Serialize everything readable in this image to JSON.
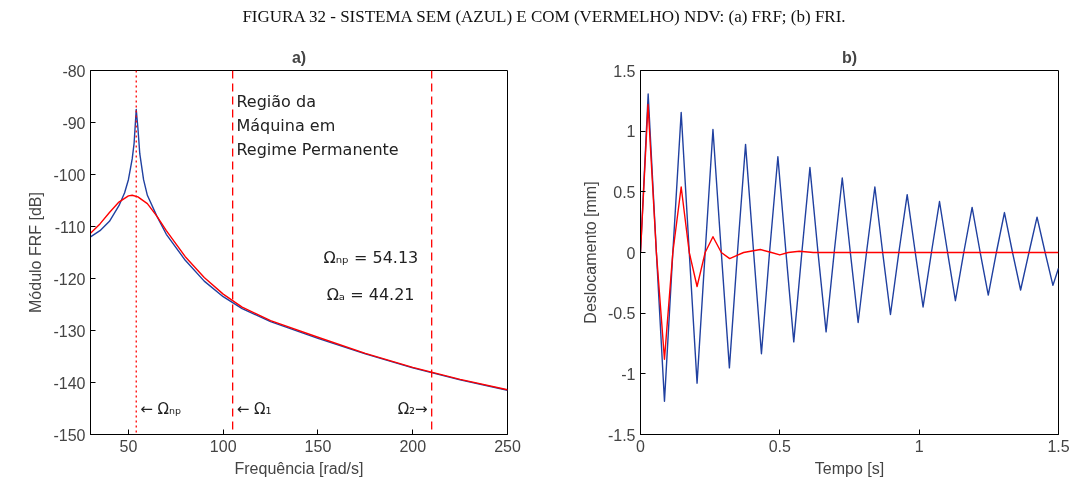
{
  "chart_data": [
    {
      "type": "line",
      "title": "a)",
      "xlabel": "Frequência [rad/s]",
      "ylabel": "Módulo FRF [dB]",
      "xlim": [
        30,
        250
      ],
      "ylim": [
        -150,
        -80
      ],
      "xticks": [
        50,
        100,
        150,
        200,
        250
      ],
      "yticks": [
        -150,
        -140,
        -130,
        -120,
        -110,
        -100,
        -90,
        -80
      ],
      "series": [
        {
          "color": "#2040a0",
          "x": [
            30,
            35,
            40,
            45,
            48,
            50,
            52,
            53,
            54.13,
            55,
            56,
            58,
            60,
            65,
            70,
            80,
            90,
            100,
            110,
            125,
            150,
            175,
            200,
            225,
            250
          ],
          "values": [
            -112,
            -110.8,
            -109,
            -106,
            -103.5,
            -101,
            -97,
            -94,
            -87.5,
            -91,
            -96,
            -101,
            -104,
            -108,
            -111.5,
            -116.5,
            -120.5,
            -123.5,
            -125.8,
            -128.3,
            -131.5,
            -134.5,
            -137.2,
            -139.5,
            -141.5
          ]
        },
        {
          "color": "#ff0000",
          "x": [
            30,
            35,
            40,
            45,
            50,
            52,
            55,
            60,
            65,
            70,
            80,
            90,
            100,
            110,
            125,
            150,
            175,
            200,
            225,
            250
          ],
          "values": [
            -111.3,
            -109.5,
            -107.3,
            -105.3,
            -104.1,
            -104,
            -104.3,
            -105.6,
            -108,
            -110.8,
            -115.8,
            -119.8,
            -123,
            -125.5,
            -128.1,
            -131.3,
            -134.4,
            -137.1,
            -139.4,
            -141.4
          ]
        }
      ],
      "ref_lines": [
        {
          "axis": "x",
          "value": 54.13,
          "label": "← Ωₙₚ",
          "color": "#ff0000",
          "line_style": "dotted"
        },
        {
          "axis": "x",
          "value": 105,
          "label": "← Ω₁",
          "color": "#ff0000",
          "line_style": "dashed"
        },
        {
          "axis": "x",
          "value": 210,
          "label": "Ω₂→",
          "color": "#ff0000",
          "line_style": "dashed"
        }
      ],
      "annotations": [
        "FIGURA 32 - SISTEMA SEM (AZUL) E COM (VERMELHO) NDV: (a) FRF; (b) FRI.",
        "Região da\nMáquina em\nRegime Permanente",
        "Ωₙₚ = 54.13",
        "Ωₐ = 44.21"
      ]
    },
    {
      "type": "line",
      "title": "b)",
      "xlabel": "Tempo [s]",
      "ylabel": "Deslocamento [mm]",
      "xlim": [
        0,
        1.5
      ],
      "ylim": [
        -1.5,
        1.5
      ],
      "xticks": [
        0,
        0.5,
        1,
        1.5
      ],
      "yticks": [
        -1.5,
        -1,
        -0.5,
        0,
        0.5,
        1,
        1.5
      ],
      "series": [
        {
          "color": "#2040a0",
          "x": [
            0,
            0.0275,
            0.057,
            0.086,
            0.116,
            0.146,
            0.175,
            0.203,
            0.232,
            0.26,
            0.29,
            0.319,
            0.348,
            0.377,
            0.406,
            0.434,
            0.463,
            0.493,
            0.522,
            0.55,
            0.579,
            0.608,
            0.637,
            0.666,
            0.695,
            0.724,
            0.753,
            0.781,
            0.811,
            0.841,
            0.869,
            0.897,
            0.927,
            0.957,
            0.986,
            1.014,
            1.044,
            1.073,
            1.102,
            1.13,
            1.16,
            1.19,
            1.219,
            1.248,
            1.277,
            1.306,
            1.335,
            1.364,
            1.394,
            1.423,
            1.452,
            1.48,
            1.5
          ],
          "values": [
            0,
            1.306,
            0,
            -1.226,
            0,
            1.154,
            0,
            -1.077,
            0,
            1.014,
            0,
            -0.951,
            0,
            0.891,
            0,
            -0.834,
            0,
            0.789,
            0,
            -0.737,
            0,
            0.7,
            0,
            -0.654,
            0,
            0.614,
            0,
            -0.577,
            0,
            0.54,
            0,
            -0.511,
            0,
            0.477,
            0,
            -0.449,
            0,
            0.42,
            0,
            -0.397,
            0,
            0.371,
            0,
            -0.351,
            0,
            0.329,
            0,
            -0.309,
            0,
            0.291,
            0,
            -0.271,
            -0.129
          ]
        },
        {
          "color": "#ff0000",
          "x": [
            0,
            0.027,
            0.057,
            0.086,
            0.116,
            0.146,
            0.175,
            0.203,
            0.232,
            0.26,
            0.29,
            0.32,
            0.37,
            0.43,
            0.47,
            0.5,
            0.53,
            0.57,
            0.62,
            1.5
          ],
          "values": [
            0,
            1.22,
            0,
            -0.88,
            0,
            0.54,
            0,
            -0.28,
            0,
            0.13,
            0,
            -0.05,
            0,
            0.025,
            0,
            -0.02,
            0,
            0.01,
            0,
            0
          ]
        }
      ]
    }
  ]
}
